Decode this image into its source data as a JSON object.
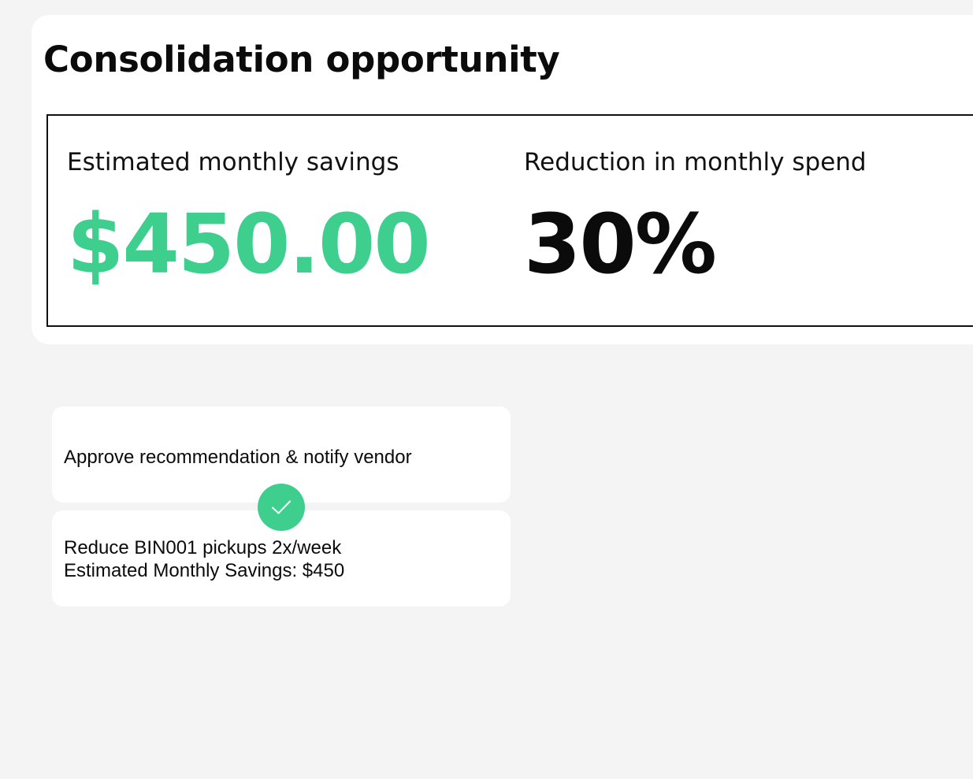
{
  "panel": {
    "title": "Consolidation opportunity"
  },
  "metrics": {
    "savings": {
      "label": "Estimated monthly savings",
      "value": "$450.00",
      "color": "#3ecf8e"
    },
    "reduction": {
      "label": "Reduction in monthly spend",
      "value": "30%",
      "color": "#0b0b0b"
    }
  },
  "actions": {
    "approve_label": "Approve recommendation & notify vendor",
    "recommendation": {
      "line1": "Reduce BIN001 pickups 2x/week",
      "line2": "Estimated Monthly Savings: $450"
    },
    "status_icon": "check-icon",
    "accent_color": "#3ecf8e"
  }
}
